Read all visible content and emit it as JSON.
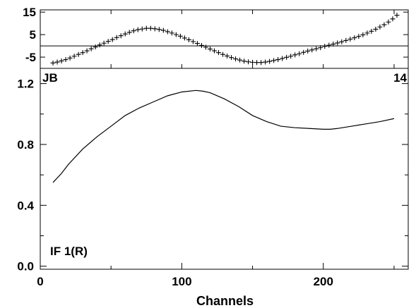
{
  "chart_data": [
    {
      "type": "scatter",
      "panel": "phase",
      "ylim": [
        -10,
        16
      ],
      "xlim": [
        0,
        260
      ],
      "yticks": [
        15,
        5,
        -5
      ],
      "y_ticklabels": [
        "15",
        "5",
        "-5"
      ],
      "zero_line": 0,
      "marker": "plus",
      "corner_left": "JB",
      "corner_right": "14",
      "series": [
        {
          "x": [
            9,
            12,
            15,
            18,
            21,
            24,
            27,
            30,
            33,
            36,
            39,
            42,
            45,
            48,
            51,
            54,
            57,
            60,
            63,
            66,
            69,
            72,
            75,
            78,
            81,
            84,
            87,
            90,
            93,
            96,
            99,
            102,
            105,
            108,
            111,
            114,
            117,
            120,
            123,
            126,
            129,
            132,
            135,
            138,
            141,
            144,
            147,
            150,
            153,
            156,
            159,
            162,
            165,
            168,
            171,
            174,
            177,
            180,
            183,
            186,
            189,
            192,
            195,
            198,
            201,
            204,
            207,
            210,
            213,
            216,
            219,
            222,
            225,
            228,
            231,
            234,
            237,
            240,
            243,
            246,
            249,
            252
          ],
          "y": [
            -7.6,
            -7.2,
            -6.7,
            -6.1,
            -5.4,
            -4.6,
            -3.8,
            -3.0,
            -2.2,
            -1.3,
            -0.5,
            0.4,
            1.2,
            2.0,
            2.8,
            3.7,
            4.5,
            5.3,
            6.0,
            6.7,
            7.2,
            7.5,
            7.8,
            7.8,
            7.6,
            7.3,
            6.9,
            6.3,
            5.7,
            5.0,
            4.3,
            3.5,
            2.7,
            1.9,
            1.1,
            0.2,
            -0.6,
            -1.4,
            -2.2,
            -3.0,
            -3.8,
            -4.5,
            -5.2,
            -5.8,
            -6.3,
            -6.8,
            -7.1,
            -7.3,
            -7.4,
            -7.4,
            -7.2,
            -6.9,
            -6.5,
            -6.1,
            -5.6,
            -5.1,
            -4.6,
            -4.0,
            -3.5,
            -2.9,
            -2.3,
            -1.8,
            -1.3,
            -0.8,
            -0.2,
            0.3,
            0.8,
            1.3,
            1.8,
            2.4,
            3.0,
            3.6,
            4.2,
            4.9,
            5.7,
            6.5,
            7.4,
            8.4,
            9.4,
            10.6,
            12.0,
            13.6
          ]
        }
      ]
    },
    {
      "type": "line",
      "panel": "amplitude",
      "ylim": [
        -0.02,
        1.3
      ],
      "xlim": [
        0,
        260
      ],
      "yticks": [
        0.0,
        0.4,
        0.8,
        1.2
      ],
      "y_ticklabels": [
        "0.0",
        "0.4",
        "0.8",
        "1.2"
      ],
      "xticks": [
        0,
        100,
        200
      ],
      "x_ticklabels": [
        "0",
        "100",
        "200"
      ],
      "xlabel": "Channels",
      "annotation": "IF 1(R)",
      "series": [
        {
          "x": [
            9,
            15,
            20,
            30,
            40,
            50,
            60,
            70,
            80,
            90,
            100,
            110,
            115,
            120,
            130,
            140,
            150,
            160,
            170,
            180,
            190,
            200,
            205,
            210,
            220,
            230,
            240,
            250
          ],
          "y": [
            0.55,
            0.61,
            0.67,
            0.77,
            0.85,
            0.92,
            0.99,
            1.04,
            1.08,
            1.12,
            1.145,
            1.155,
            1.15,
            1.14,
            1.1,
            1.05,
            0.99,
            0.95,
            0.92,
            0.91,
            0.905,
            0.9,
            0.9,
            0.905,
            0.92,
            0.935,
            0.95,
            0.97
          ]
        }
      ]
    }
  ]
}
